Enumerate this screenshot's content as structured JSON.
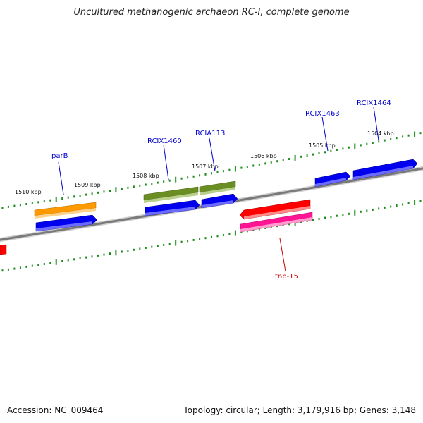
{
  "title": "Uncultured methanogenic archaeon RC-I, complete genome",
  "footer": {
    "accession": "Accession: NC_009464",
    "topology": "Topology: circular; Length: 3,179,916 bp; Genes: 3,148"
  },
  "scale_labels": [
    "1510 kbp",
    "1509 kbp",
    "1508 kbp",
    "1507 kbp",
    "1506 kbp",
    "1505 kbp",
    "1504 kbp"
  ],
  "gene_labels": {
    "parB": "parB",
    "rcix1460": "RCIX1460",
    "rcia113": "RCIA113",
    "rcix1463": "RCIX1463",
    "rcix1464": "RCIX1464",
    "tnp15": "tnp-15"
  },
  "colors": {
    "backbone": "#808080",
    "cds": "#0000ee",
    "gene_orange": "#ff9900",
    "gene_olive": "#6b8e23",
    "gene_red": "#ff0000",
    "gene_magenta": "#ff1493",
    "tick": "#1a8a1a",
    "label_forward": "#0000cc",
    "label_reverse": "#cc0000"
  }
}
